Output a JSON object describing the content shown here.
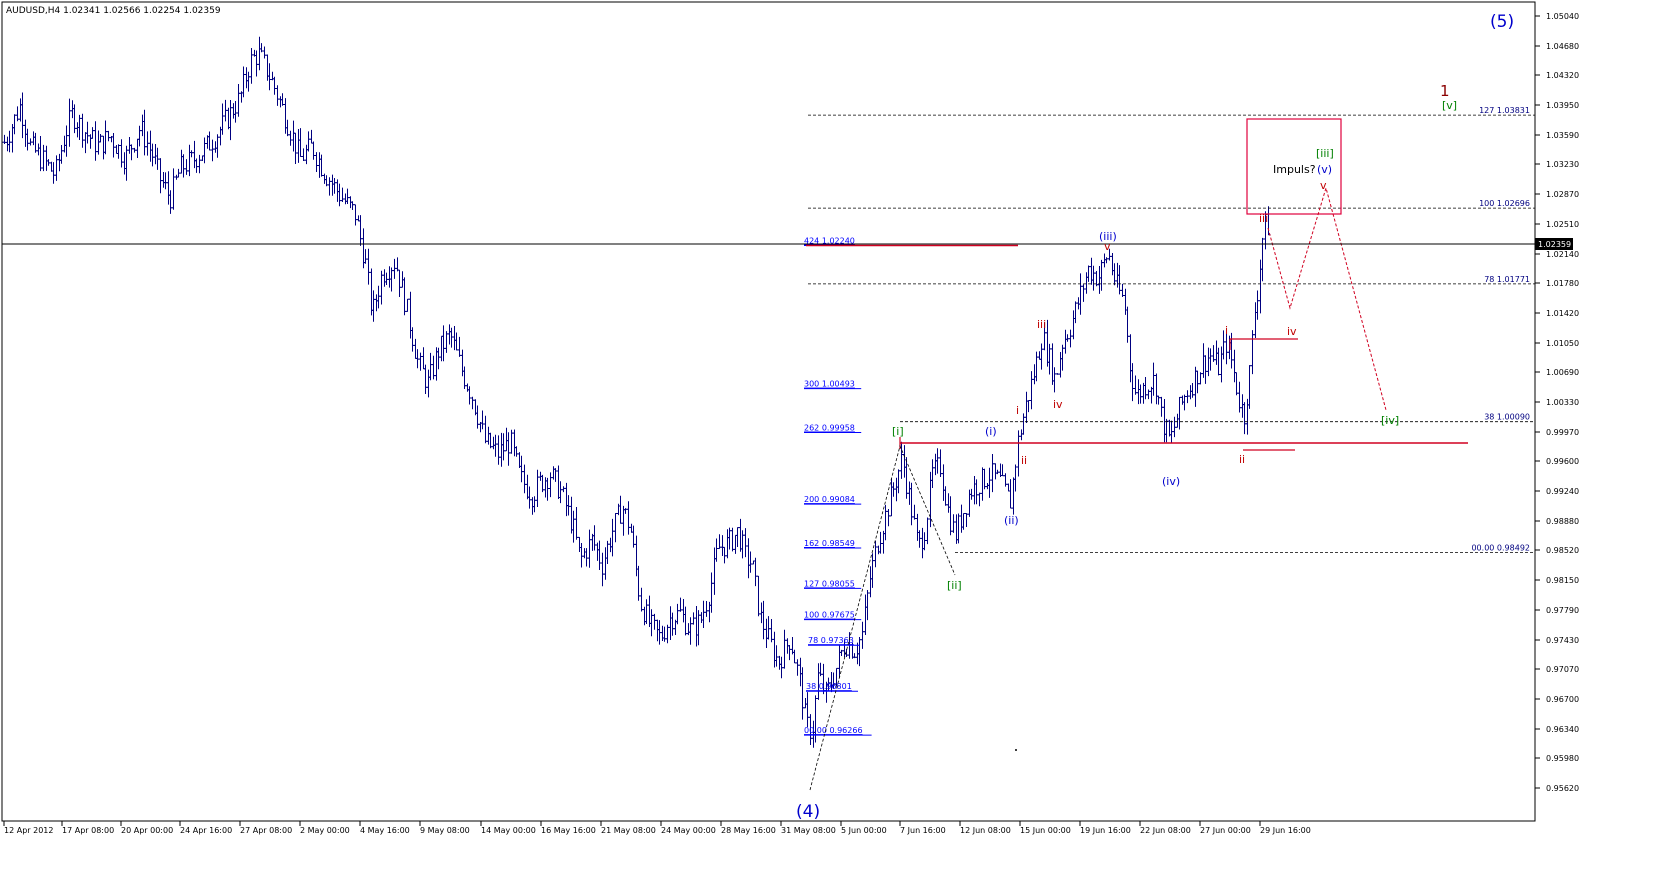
{
  "window": {
    "title": "AUDUSD,H4  1.02341 1.02566 1.02254 1.02359",
    "symbol": "AUDUSD",
    "timeframe": "H4"
  },
  "colors": {
    "background": "#ffffff",
    "bar": "#000080",
    "axis": "#000000",
    "fib_text": "#0000ff",
    "red": "#c00000",
    "green": "#008000",
    "blue": "#0000cc",
    "box": "#e0003c",
    "projection": "#d00020",
    "price_box_bg": "#000000",
    "price_box_text": "#ffffff"
  },
  "y_axis": {
    "ticks": [
      "1.05040",
      "1.04680",
      "1.04320",
      "1.03950",
      "1.03590",
      "1.03230",
      "1.02870",
      "1.02510",
      "1.02140",
      "1.01780",
      "1.01420",
      "1.01050",
      "1.00690",
      "1.00330",
      "0.99970",
      "0.99600",
      "0.99240",
      "0.98880",
      "0.98520",
      "0.98150",
      "0.97790",
      "0.97430",
      "0.97070",
      "0.96700",
      "0.96340",
      "0.95980",
      "0.95620"
    ],
    "current_price": "1.02359"
  },
  "x_axis": {
    "ticks": [
      "12 Apr 2012",
      "17 Apr 08:00",
      "20 Apr 00:00",
      "24 Apr 16:00",
      "27 Apr 08:00",
      "2 May 00:00",
      "4 May 16:00",
      "9 May 08:00",
      "14 May 00:00",
      "16 May 16:00",
      "21 May 08:00",
      "24 May 00:00",
      "28 May 16:00",
      "31 May 08:00",
      "5 Jun 00:00",
      "7 Jun 16:00",
      "12 Jun 08:00",
      "15 Jun 00:00",
      "19 Jun 16:00",
      "22 Jun 08:00",
      "27 Jun 00:00",
      "29 Jun 16:00"
    ]
  },
  "fib_left": [
    {
      "label": "424 1.02240",
      "price": 1.0224
    },
    {
      "label": "300 1.00493",
      "price": 1.00493
    },
    {
      "label": "262 0.99958",
      "price": 0.99958
    },
    {
      "label": "200 0.99084",
      "price": 0.99084
    },
    {
      "label": "162 0.98549",
      "price": 0.98549
    },
    {
      "label": "127 0.98055",
      "price": 0.98055
    },
    {
      "label": "100 0.97675",
      "price": 0.97675
    },
    {
      "label": "78 0.97363",
      "price": 0.97363
    },
    {
      "label": "38 0.96801",
      "price": 0.96801
    },
    {
      "label": "00.00 0.96266",
      "price": 0.96266
    }
  ],
  "fib_right": [
    {
      "label": "127 1.03831",
      "price": 1.03831
    },
    {
      "label": "100 1.02696",
      "price": 1.02696
    },
    {
      "label": "78 1.01771",
      "price": 1.01771
    },
    {
      "label": "38 1.00090",
      "price": 1.0009
    },
    {
      "label": "00.00 0.98492",
      "price": 0.98492
    }
  ],
  "wave_labels": [
    {
      "text": "(5)",
      "color": "blue",
      "size": "large"
    },
    {
      "text": "1",
      "color": "red",
      "size": "large"
    },
    {
      "text": "[v]",
      "color": "green",
      "size": "small"
    },
    {
      "text": "[iii]",
      "color": "green",
      "size": "small"
    },
    {
      "text": "Impuls?",
      "color": "black",
      "size": "small"
    },
    {
      "text": "(v)",
      "color": "blue",
      "size": "small"
    },
    {
      "text": "v",
      "color": "red",
      "size": "small"
    },
    {
      "text": "iii",
      "color": "red",
      "size": "small"
    },
    {
      "text": "(iii)",
      "color": "blue",
      "size": "small"
    },
    {
      "text": "v",
      "color": "red",
      "size": "small"
    },
    {
      "text": "iii",
      "color": "red",
      "size": "small"
    },
    {
      "text": "iv",
      "color": "red",
      "size": "small"
    },
    {
      "text": "i",
      "color": "red",
      "size": "small"
    },
    {
      "text": "iv",
      "color": "red",
      "size": "small"
    },
    {
      "text": "[iv]",
      "color": "green",
      "size": "small"
    },
    {
      "text": "[i]",
      "color": "green",
      "size": "small"
    },
    {
      "text": "(i)",
      "color": "blue",
      "size": "small"
    },
    {
      "text": "i",
      "color": "red",
      "size": "small"
    },
    {
      "text": "ii",
      "color": "red",
      "size": "small"
    },
    {
      "text": "(iv)",
      "color": "blue",
      "size": "small"
    },
    {
      "text": "ii",
      "color": "red",
      "size": "small"
    },
    {
      "text": "(ii)",
      "color": "blue",
      "size": "small"
    },
    {
      "text": "[ii]",
      "color": "green",
      "size": "small"
    },
    {
      "text": "(4)",
      "color": "blue",
      "size": "large"
    }
  ],
  "price_path": [
    [
      5,
      1.035
    ],
    [
      20,
      1.0395
    ],
    [
      30,
      1.0345
    ],
    [
      45,
      1.0325
    ],
    [
      55,
      1.031
    ],
    [
      65,
      1.036
    ],
    [
      72,
      1.0385
    ],
    [
      85,
      1.0362
    ],
    [
      98,
      1.0345
    ],
    [
      110,
      1.0358
    ],
    [
      125,
      1.033
    ],
    [
      140,
      1.0368
    ],
    [
      152,
      1.0335
    ],
    [
      160,
      1.0305
    ],
    [
      170,
      1.0282
    ],
    [
      180,
      1.0318
    ],
    [
      192,
      1.0328
    ],
    [
      205,
      1.0342
    ],
    [
      218,
      1.0362
    ],
    [
      230,
      1.0385
    ],
    [
      240,
      1.0405
    ],
    [
      250,
      1.0448
    ],
    [
      258,
      1.0458
    ],
    [
      266,
      1.044
    ],
    [
      275,
      1.0415
    ],
    [
      288,
      1.0372
    ],
    [
      300,
      1.033
    ],
    [
      312,
      1.0345
    ],
    [
      325,
      1.0312
    ],
    [
      340,
      1.0285
    ],
    [
      355,
      1.0262
    ],
    [
      365,
      1.0205
    ],
    [
      372,
      1.014
    ],
    [
      382,
      1.019
    ],
    [
      395,
      1.0205
    ],
    [
      405,
      1.0155
    ],
    [
      418,
      1.008
    ],
    [
      428,
      1.0055
    ],
    [
      438,
      1.0095
    ],
    [
      450,
      1.0115
    ],
    [
      462,
      1.007
    ],
    [
      472,
      1.004
    ],
    [
      485,
      0.9985
    ],
    [
      498,
      0.997
    ],
    [
      510,
      0.9985
    ],
    [
      520,
      0.994
    ],
    [
      532,
      0.992
    ],
    [
      540,
      0.9935
    ],
    [
      550,
      0.9945
    ],
    [
      560,
      0.9925
    ],
    [
      572,
      0.9885
    ],
    [
      580,
      0.984
    ],
    [
      592,
      0.9865
    ],
    [
      602,
      0.9835
    ],
    [
      612,
      0.9875
    ],
    [
      622,
      0.9905
    ],
    [
      630,
      0.988
    ],
    [
      640,
      0.979
    ],
    [
      650,
      0.976
    ],
    [
      660,
      0.9745
    ],
    [
      670,
      0.977
    ],
    [
      680,
      0.9775
    ],
    [
      690,
      0.9755
    ],
    [
      700,
      0.9765
    ],
    [
      710,
      0.9805
    ],
    [
      718,
      0.9855
    ],
    [
      728,
      0.986
    ],
    [
      738,
      0.9875
    ],
    [
      745,
      0.9845
    ],
    [
      752,
      0.9835
    ],
    [
      760,
      0.977
    ],
    [
      768,
      0.9745
    ],
    [
      778,
      0.9715
    ],
    [
      790,
      0.9745
    ],
    [
      800,
      0.969
    ],
    [
      806,
      0.964
    ],
    [
      812,
      0.963
    ],
    [
      818,
      0.97
    ],
    [
      826,
      0.9675
    ],
    [
      835,
      0.9705
    ],
    [
      845,
      0.974
    ],
    [
      855,
      0.973
    ],
    [
      862,
      0.975
    ],
    [
      870,
      0.982
    ],
    [
      878,
      0.9865
    ],
    [
      888,
      0.9905
    ],
    [
      895,
      0.9935
    ],
    [
      902,
      0.9965
    ],
    [
      910,
      0.991
    ],
    [
      918,
      0.9855
    ],
    [
      925,
      0.988
    ],
    [
      932,
      0.9945
    ],
    [
      940,
      0.9955
    ],
    [
      948,
      0.99
    ],
    [
      955,
      0.987
    ],
    [
      962,
      0.9895
    ],
    [
      970,
      0.9925
    ],
    [
      980,
      0.9935
    ],
    [
      990,
      0.9945
    ],
    [
      1000,
      0.9935
    ],
    [
      1010,
      0.991
    ],
    [
      1018,
      0.9985
    ],
    [
      1025,
      1.0025
    ],
    [
      1035,
      1.0075
    ],
    [
      1042,
      1.0115
    ],
    [
      1048,
      1.009
    ],
    [
      1055,
      1.006
    ],
    [
      1062,
      1.0105
    ],
    [
      1070,
      1.0125
    ],
    [
      1078,
      1.0155
    ],
    [
      1088,
      1.0195
    ],
    [
      1098,
      1.0185
    ],
    [
      1108,
      1.0215
    ],
    [
      1116,
      1.0175
    ],
    [
      1124,
      1.0155
    ],
    [
      1130,
      1.0075
    ],
    [
      1136,
      1.004
    ],
    [
      1146,
      1.0055
    ],
    [
      1155,
      1.006
    ],
    [
      1162,
      1.001
    ],
    [
      1170,
      0.9985
    ],
    [
      1178,
      1.002
    ],
    [
      1186,
      1.0045
    ],
    [
      1194,
      1.006
    ],
    [
      1202,
      1.008
    ],
    [
      1210,
      1.009
    ],
    [
      1218,
      1.0075
    ],
    [
      1226,
      1.0105
    ],
    [
      1232,
      1.008
    ],
    [
      1238,
      1.004
    ],
    [
      1244,
      1.0015
    ],
    [
      1250,
      1.0075
    ],
    [
      1254,
      1.014
    ],
    [
      1258,
      1.0175
    ],
    [
      1262,
      1.023
    ],
    [
      1266,
      1.0255
    ],
    [
      1270,
      1.0236
    ]
  ]
}
